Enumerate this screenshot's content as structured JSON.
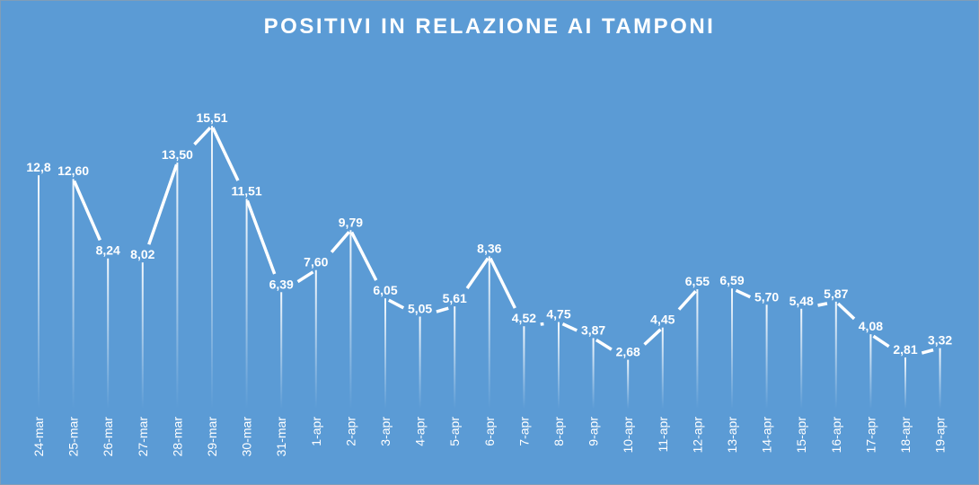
{
  "chart_data": {
    "type": "line",
    "title": "POSITIVI IN RELAZIONE AI TAMPONI",
    "categories": [
      "24-mar",
      "25-mar",
      "26-mar",
      "27-mar",
      "28-mar",
      "29-mar",
      "30-mar",
      "31-mar",
      "1-apr",
      "2-apr",
      "3-apr",
      "4-apr",
      "5-apr",
      "6-apr",
      "7-apr",
      "8-apr",
      "9-apr",
      "10-apr",
      "11-apr",
      "12-apr",
      "13-apr",
      "14-apr",
      "15-apr",
      "16-apr",
      "17-apr",
      "18-apr",
      "19-apr"
    ],
    "values": [
      12.8,
      12.6,
      8.24,
      8.02,
      13.5,
      15.51,
      11.51,
      6.39,
      7.6,
      9.79,
      6.05,
      5.05,
      5.61,
      8.36,
      4.52,
      4.75,
      3.87,
      2.68,
      4.45,
      6.55,
      6.59,
      5.7,
      5.48,
      5.87,
      4.08,
      2.81,
      3.32
    ],
    "data_labels": [
      "12,8",
      "12,60",
      "8,24",
      "8,02",
      "13,50",
      "15,51",
      "11,51",
      "6,39",
      "7,60",
      "9,79",
      "6,05",
      "5,05",
      "5,61",
      "8,36",
      "4,52",
      "4,75",
      "3,87",
      "2,68",
      "4,45",
      "6,55",
      "6,59",
      "5,70",
      "5,48",
      "5,87",
      "4,08",
      "2,81",
      "3,32"
    ],
    "xlabel": "",
    "ylabel": "",
    "ylim": [
      0,
      17
    ],
    "grid": false,
    "colors": {
      "background": "#5b9bd5",
      "line": "#ffffff",
      "text": "#ffffff"
    }
  }
}
